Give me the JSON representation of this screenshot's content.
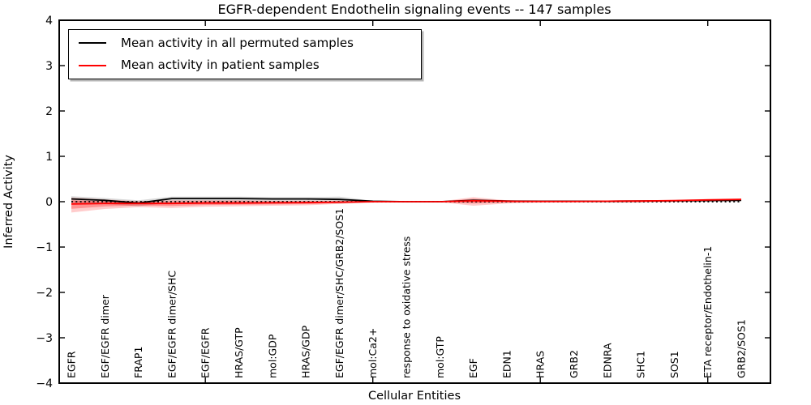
{
  "figure": {
    "title": "EGFR-dependent Endothelin signaling events -- 147 samples",
    "xlabel": "Cellular Entities",
    "ylabel": "Inferred Activity"
  },
  "legend": {
    "entries": [
      {
        "label": "Mean activity in all permuted samples",
        "color": "#000000"
      },
      {
        "label": "Mean activity in patient samples",
        "color": "#ff0000"
      }
    ]
  },
  "chart_data": {
    "type": "line",
    "title": "EGFR-dependent Endothelin signaling events -- 147 samples",
    "xlabel": "Cellular Entities",
    "ylabel": "Inferred Activity",
    "ylim": [
      -4,
      4
    ],
    "yticks": [
      -4,
      -3,
      -2,
      -1,
      0,
      1,
      2,
      3,
      4
    ],
    "xtick_start_index": 4,
    "xtick_every": 5,
    "grid": false,
    "legend_position": "upper left",
    "zero_reference_line": {
      "y": 0,
      "style": "dotted",
      "color": "#000000"
    },
    "categories": [
      "EGFR",
      "EGF/EGFR dimer",
      "FRAP1",
      "EGF/EGFR dimer/SHC",
      "EGF/EGFR",
      "HRAS/GTP",
      "mol:GDP",
      "HRAS/GDP",
      "EGF/EGFR dimer/SHC/GRB2/SOS1",
      "mol:Ca2+",
      "response to oxidative stress",
      "mol:GTP",
      "EGF",
      "EDN1",
      "HRAS",
      "GRB2",
      "EDNRA",
      "SHC1",
      "SOS1",
      "ETA receptor/Endothelin-1",
      "GRB2/SOS1"
    ],
    "series": [
      {
        "name": "Mean activity in all permuted samples",
        "color": "#000000",
        "line_style": "solid",
        "values": [
          0.06,
          0.03,
          -0.03,
          0.07,
          0.07,
          0.07,
          0.06,
          0.06,
          0.05,
          0.01,
          0.0,
          0.0,
          0.03,
          0.015,
          0.01,
          0.01,
          0.01,
          0.015,
          0.02,
          0.025,
          0.03
        ],
        "band_upper": [
          0.12,
          0.08,
          0.03,
          0.11,
          0.11,
          0.11,
          0.1,
          0.1,
          0.11,
          0.02,
          0.01,
          0.01,
          0.04,
          0.025,
          0.02,
          0.02,
          0.02,
          0.025,
          0.03,
          0.04,
          0.045
        ],
        "band_lower": [
          -0.02,
          -0.05,
          -0.1,
          -0.02,
          -0.01,
          -0.01,
          -0.01,
          -0.02,
          -0.04,
          -0.015,
          -0.01,
          -0.01,
          -0.01,
          -0.005,
          -0.005,
          -0.005,
          -0.005,
          0.0,
          0.005,
          0.01,
          0.015
        ],
        "band_color": "#777777"
      },
      {
        "name": "Mean activity in patient samples",
        "color": "#ff0000",
        "line_style": "solid",
        "values": [
          -0.05,
          -0.04,
          -0.04,
          -0.04,
          -0.03,
          -0.03,
          -0.025,
          -0.02,
          -0.01,
          0.0,
          0.0,
          0.0,
          0.02,
          0.01,
          0.005,
          0.005,
          0.01,
          0.015,
          0.025,
          0.04,
          0.05
        ],
        "band_upper": [
          0.09,
          0.05,
          0.01,
          0.03,
          0.03,
          0.03,
          0.02,
          0.02,
          0.02,
          0.01,
          0.005,
          0.005,
          0.1,
          0.03,
          0.02,
          0.015,
          0.02,
          0.03,
          0.04,
          0.06,
          0.07
        ],
        "band_lower": [
          -0.24,
          -0.16,
          -0.12,
          -0.14,
          -0.11,
          -0.1,
          -0.09,
          -0.08,
          -0.05,
          -0.02,
          -0.01,
          -0.01,
          -0.09,
          -0.04,
          -0.02,
          -0.015,
          -0.02,
          -0.02,
          -0.01,
          0.0,
          0.02
        ],
        "band_color": "#ff0000"
      }
    ]
  }
}
